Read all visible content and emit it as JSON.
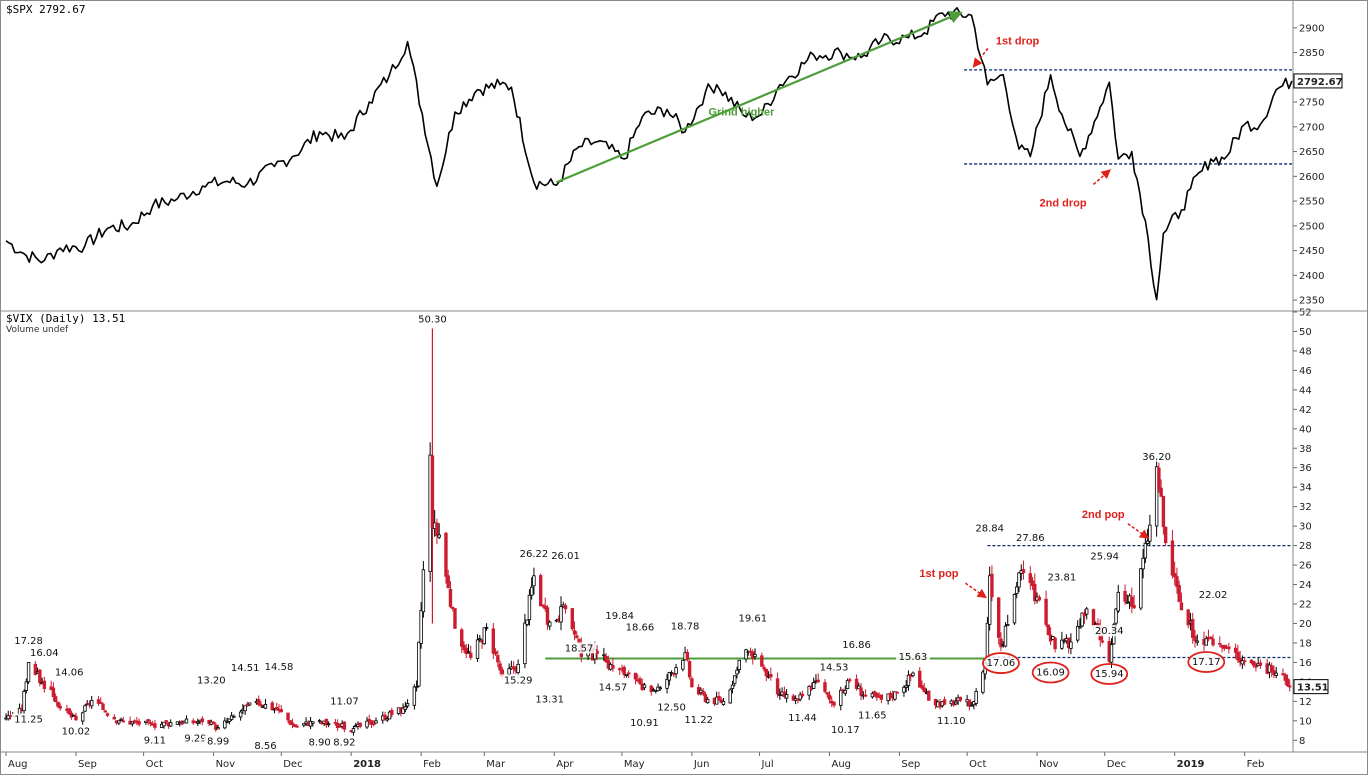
{
  "chart_data": [
    {
      "type": "line",
      "title": "$SPX 2792.67",
      "ylim": [
        2330,
        2940
      ],
      "y_ticks": [
        "2900",
        "2850",
        "2800",
        "2750",
        "2700",
        "2650",
        "2600",
        "2550",
        "2500",
        "2450",
        "2400",
        "2350"
      ],
      "last_value_label": "2792.67",
      "x": [
        "2017-08-01",
        "2017-08-10",
        "2017-08-18",
        "2017-08-25",
        "2017-09-05",
        "2017-09-15",
        "2017-09-25",
        "2017-10-05",
        "2017-10-16",
        "2017-10-27",
        "2017-11-07",
        "2017-11-16",
        "2017-11-28",
        "2017-12-06",
        "2017-12-18",
        "2017-12-29",
        "2018-01-09",
        "2018-01-18",
        "2018-01-26",
        "2018-02-08",
        "2018-02-16",
        "2018-02-26",
        "2018-03-08",
        "2018-03-13",
        "2018-03-23",
        "2018-04-02",
        "2018-04-12",
        "2018-04-20",
        "2018-05-02",
        "2018-05-10",
        "2018-05-21",
        "2018-05-29",
        "2018-06-07",
        "2018-06-12",
        "2018-06-25",
        "2018-07-02",
        "2018-07-10",
        "2018-07-25",
        "2018-08-06",
        "2018-08-15",
        "2018-08-24",
        "2018-09-05",
        "2018-09-12",
        "2018-09-20",
        "2018-10-03",
        "2018-10-10",
        "2018-10-17",
        "2018-10-24",
        "2018-10-29",
        "2018-11-07",
        "2018-11-12",
        "2018-11-20",
        "2018-11-29",
        "2018-12-03",
        "2018-12-07",
        "2018-12-13",
        "2018-12-19",
        "2018-12-24",
        "2018-12-27",
        "2019-01-04",
        "2019-01-08",
        "2019-01-17",
        "2019-01-23",
        "2019-02-01",
        "2019-02-08",
        "2019-02-15",
        "2019-02-22"
      ],
      "values": [
        2470,
        2440,
        2430,
        2455,
        2460,
        2495,
        2500,
        2540,
        2555,
        2580,
        2590,
        2585,
        2620,
        2640,
        2690,
        2675,
        2750,
        2805,
        2872,
        2580,
        2730,
        2775,
        2785,
        2780,
        2588,
        2582,
        2660,
        2670,
        2635,
        2720,
        2735,
        2690,
        2770,
        2785,
        2720,
        2725,
        2785,
        2845,
        2850,
        2840,
        2875,
        2880,
        2890,
        2930,
        2925,
        2785,
        2805,
        2655,
        2640,
        2805,
        2725,
        2640,
        2740,
        2790,
        2635,
        2650,
        2510,
        2351,
        2485,
        2532,
        2575,
        2635,
        2635,
        2705,
        2705,
        2775,
        2792.67
      ],
      "annotations": [
        {
          "text": "Grind higher",
          "color": "#4d9e3a",
          "from": [
            "2018-04-02",
            2588
          ],
          "to": [
            "2018-09-28",
            2930
          ]
        },
        {
          "text": "1st drop",
          "color": "#e0201a",
          "target": [
            "2018-10-04",
            2810
          ]
        },
        {
          "text": "2nd drop",
          "color": "#e0201a",
          "target": [
            "2018-12-04",
            2612
          ]
        }
      ],
      "reference_lines": [
        {
          "y": 2815,
          "from": "2018-10-01",
          "color": "#0a2a6e"
        },
        {
          "y": 2625,
          "from": "2018-10-01",
          "color": "#0a2a6e"
        }
      ]
    },
    {
      "type": "bar",
      "title": "$VIX (Daily) 13.51",
      "subtitle": "Volume undef",
      "ylim": [
        7,
        52
      ],
      "y_ticks": [
        "52",
        "50",
        "48",
        "46",
        "44",
        "42",
        "40",
        "38",
        "36",
        "34",
        "32",
        "30",
        "28",
        "26",
        "24",
        "22",
        "20",
        "18",
        "16",
        "14",
        "12",
        "10",
        "8"
      ],
      "last_value_label": "13.51",
      "x_tick_labels": [
        "Aug",
        "Sep",
        "Oct",
        "Nov",
        "Dec",
        "2018",
        "Feb",
        "Mar",
        "Apr",
        "May",
        "Jun",
        "Jul",
        "Aug",
        "Sep",
        "Oct",
        "Nov",
        "Dec",
        "2019",
        "Feb"
      ],
      "x_tick_dates": [
        "2017-08-01",
        "2017-09-01",
        "2017-10-01",
        "2017-11-01",
        "2017-12-01",
        "2018-01-01",
        "2018-02-01",
        "2018-03-01",
        "2018-04-01",
        "2018-05-01",
        "2018-06-01",
        "2018-07-01",
        "2018-08-01",
        "2018-09-01",
        "2018-10-01",
        "2018-11-01",
        "2018-12-01",
        "2019-01-01",
        "2019-02-01"
      ],
      "x": [
        "2017-08-01",
        "2017-08-08",
        "2017-08-11",
        "2017-08-17",
        "2017-08-21",
        "2017-08-25",
        "2017-09-01",
        "2017-09-08",
        "2017-09-20",
        "2017-10-05",
        "2017-10-16",
        "2017-10-27",
        "2017-11-03",
        "2017-11-13",
        "2017-11-20",
        "2017-11-30",
        "2017-12-07",
        "2017-12-15",
        "2017-12-22",
        "2018-01-02",
        "2018-01-12",
        "2018-01-24",
        "2018-01-30",
        "2018-02-05",
        "2018-02-06",
        "2018-02-09",
        "2018-02-16",
        "2018-02-23",
        "2018-03-02",
        "2018-03-09",
        "2018-03-16",
        "2018-03-23",
        "2018-03-29",
        "2018-04-06",
        "2018-04-13",
        "2018-04-20",
        "2018-04-27",
        "2018-05-04",
        "2018-05-10",
        "2018-05-18",
        "2018-05-29",
        "2018-06-01",
        "2018-06-08",
        "2018-06-15",
        "2018-06-25",
        "2018-07-02",
        "2018-07-10",
        "2018-07-18",
        "2018-07-26",
        "2018-08-03",
        "2018-08-10",
        "2018-08-17",
        "2018-08-24",
        "2018-08-31",
        "2018-09-07",
        "2018-09-14",
        "2018-09-21",
        "2018-09-28",
        "2018-10-03",
        "2018-10-09",
        "2018-10-11",
        "2018-10-16",
        "2018-10-19",
        "2018-10-24",
        "2018-10-29",
        "2018-11-05",
        "2018-11-09",
        "2018-11-16",
        "2018-11-23",
        "2018-11-30",
        "2018-12-03",
        "2018-12-07",
        "2018-12-14",
        "2018-12-21",
        "2018-12-24",
        "2018-12-28",
        "2019-01-04",
        "2019-01-11",
        "2019-01-18",
        "2019-01-25",
        "2019-02-01",
        "2019-02-08",
        "2019-02-15",
        "2019-02-22"
      ],
      "values": [
        10.3,
        11.1,
        16.0,
        13.9,
        13.2,
        11.3,
        10.1,
        12.1,
        10.0,
        9.6,
        9.9,
        9.9,
        9.3,
        10.9,
        12.0,
        11.1,
        9.4,
        9.9,
        9.7,
        9.2,
        10.0,
        11.3,
        13.5,
        37.3,
        29.9,
        29.1,
        19.5,
        16.5,
        19.6,
        14.6,
        15.8,
        24.9,
        19.9,
        21.5,
        16.6,
        16.9,
        15.4,
        14.8,
        13.2,
        13.4,
        17.0,
        13.5,
        12.2,
        12.0,
        17.3,
        15.6,
        12.7,
        12.1,
        14.1,
        11.6,
        14.2,
        12.6,
        12.2,
        12.9,
        14.9,
        12.1,
        11.7,
        12.1,
        11.6,
        15.9,
        24.9,
        17.6,
        19.9,
        25.2,
        24.2,
        19.9,
        17.4,
        18.1,
        21.5,
        18.1,
        16.1,
        23.2,
        21.6,
        30.1,
        36.1,
        28.3,
        21.4,
        18.2,
        17.8,
        17.4,
        16.1,
        15.7,
        14.9,
        13.51
      ],
      "data_labels": [
        {
          "text": "17.28",
          "x": "2017-08-11",
          "y": 17.28
        },
        {
          "text": "16.04",
          "x": "2017-08-18",
          "y": 16.04
        },
        {
          "text": "11.25",
          "x": "2017-08-11",
          "y": 11.25
        },
        {
          "text": "14.06",
          "x": "2017-08-29",
          "y": 14.06
        },
        {
          "text": "10.02",
          "x": "2017-09-01",
          "y": 10.02
        },
        {
          "text": "9.11",
          "x": "2017-10-06",
          "y": 9.11
        },
        {
          "text": "13.20",
          "x": "2017-10-31",
          "y": 13.2
        },
        {
          "text": "9.29",
          "x": "2017-10-24",
          "y": 9.29
        },
        {
          "text": "8.99",
          "x": "2017-11-03",
          "y": 8.99
        },
        {
          "text": "14.51",
          "x": "2017-11-15",
          "y": 14.51
        },
        {
          "text": "14.58",
          "x": "2017-11-30",
          "y": 14.58
        },
        {
          "text": "8.56",
          "x": "2017-11-24",
          "y": 8.56
        },
        {
          "text": "11.07",
          "x": "2017-12-29",
          "y": 11.07
        },
        {
          "text": "8.90",
          "x": "2017-12-18",
          "y": 8.9
        },
        {
          "text": "8.92",
          "x": "2017-12-29",
          "y": 8.92
        },
        {
          "text": "50.30",
          "x": "2018-02-06",
          "y": 50.3
        },
        {
          "text": "26.22",
          "x": "2018-03-23",
          "y": 26.22
        },
        {
          "text": "15.29",
          "x": "2018-03-16",
          "y": 15.29
        },
        {
          "text": "13.31",
          "x": "2018-03-30",
          "y": 13.31
        },
        {
          "text": "26.01",
          "x": "2018-04-06",
          "y": 26.01
        },
        {
          "text": "18.57",
          "x": "2018-04-12",
          "y": 18.57
        },
        {
          "text": "19.84",
          "x": "2018-04-30",
          "y": 19.84
        },
        {
          "text": "18.66",
          "x": "2018-05-09",
          "y": 18.66
        },
        {
          "text": "14.57",
          "x": "2018-04-27",
          "y": 14.57
        },
        {
          "text": "10.91",
          "x": "2018-05-11",
          "y": 10.91
        },
        {
          "text": "12.50",
          "x": "2018-05-23",
          "y": 12.5
        },
        {
          "text": "18.78",
          "x": "2018-05-29",
          "y": 18.78
        },
        {
          "text": "11.22",
          "x": "2018-06-04",
          "y": 11.22
        },
        {
          "text": "19.61",
          "x": "2018-06-28",
          "y": 19.61
        },
        {
          "text": "11.44",
          "x": "2018-07-20",
          "y": 11.44
        },
        {
          "text": "14.53",
          "x": "2018-08-03",
          "y": 14.53
        },
        {
          "text": "16.86",
          "x": "2018-08-13",
          "y": 16.86
        },
        {
          "text": "10.17",
          "x": "2018-08-08",
          "y": 10.17
        },
        {
          "text": "11.65",
          "x": "2018-08-20",
          "y": 11.65
        },
        {
          "text": "15.63",
          "x": "2018-09-07",
          "y": 15.63
        },
        {
          "text": "11.10",
          "x": "2018-09-24",
          "y": 11.1
        },
        {
          "text": "28.84",
          "x": "2018-10-11",
          "y": 28.84
        },
        {
          "text": "17.06",
          "x": "2018-10-16",
          "y": 17.06
        },
        {
          "text": "27.86",
          "x": "2018-10-29",
          "y": 27.86
        },
        {
          "text": "23.81",
          "x": "2018-11-12",
          "y": 23.81
        },
        {
          "text": "16.09",
          "x": "2018-11-07",
          "y": 16.09
        },
        {
          "text": "25.94",
          "x": "2018-12-01",
          "y": 25.94
        },
        {
          "text": "20.34",
          "x": "2018-12-03",
          "y": 20.34
        },
        {
          "text": "15.94",
          "x": "2018-12-03",
          "y": 15.94
        },
        {
          "text": "36.20",
          "x": "2018-12-24",
          "y": 36.2
        },
        {
          "text": "22.02",
          "x": "2019-01-18",
          "y": 22.02
        },
        {
          "text": "17.17",
          "x": "2019-01-15",
          "y": 17.17
        }
      ],
      "annotations": [
        {
          "text": "1st pop",
          "color": "#e0201a",
          "target": [
            "2018-10-10",
            22.5
          ]
        },
        {
          "text": "2nd pop",
          "color": "#e0201a",
          "target": [
            "2018-12-21",
            28.6
          ]
        }
      ],
      "circled_labels": [
        "17.06",
        "16.09",
        "15.94",
        "17.17"
      ],
      "reference_lines": [
        {
          "y": 28,
          "from": "2018-10-10",
          "color": "#0a2a6e",
          "style": "dashed"
        },
        {
          "y": 16.5,
          "from": "2018-10-10",
          "color": "#0a2a6e",
          "style": "dashed"
        },
        {
          "y": 16.4,
          "from": "2018-03-28",
          "to": "2018-10-10",
          "color": "#4d9e3a",
          "style": "solid"
        }
      ]
    }
  ],
  "colors": {
    "up": "#000000",
    "down": "#cc1d30",
    "grid": "#b0b0b0",
    "annotation_red": "#e0201a",
    "annotation_green": "#4d9e3a",
    "ref_navy": "#0a2a6e"
  }
}
